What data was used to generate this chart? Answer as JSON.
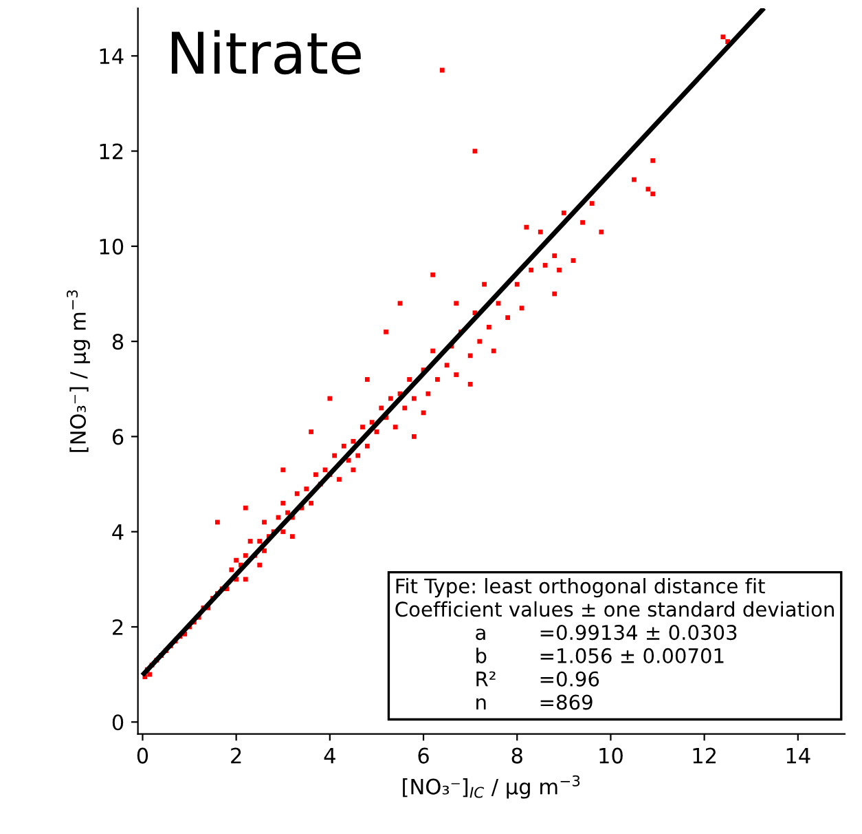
{
  "chart_data": {
    "type": "scatter",
    "title": "Nitrate",
    "xlabel": "[NO₃⁻]$_{IC}$ / µg m$^{−3}$",
    "ylabel": "[NO₃⁻] / µg m$^{−3}$",
    "annotations": [
      "Fit Type: least orthogonal distance fit",
      "Coefficient values ± one standard deviation",
      "a",
      "=0.99134 ± 0.0303",
      "b",
      "=1.056 ± 0.00701",
      "R²",
      "=0.96",
      "n",
      "=869"
    ],
    "xlim": [
      -0.1,
      15
    ],
    "ylim": [
      -0.25,
      15
    ],
    "xticks": [
      0,
      2,
      4,
      6,
      8,
      10,
      12,
      14
    ],
    "yticks": [
      0,
      2,
      4,
      6,
      8,
      10,
      12,
      14
    ],
    "grid": false,
    "legend": false,
    "marker": "square",
    "series": [
      {
        "color": "#ff0000",
        "x": [
          0.05,
          0.1,
          0.15,
          0.2,
          0.3,
          0.4,
          0.5,
          0.6,
          0.7,
          0.8,
          0.9,
          1.0,
          1.1,
          1.2,
          1.3,
          1.4,
          1.5,
          1.6,
          1.7,
          1.8,
          1.9,
          2.0,
          2.0,
          2.1,
          2.2,
          2.2,
          2.3,
          2.4,
          2.5,
          2.6,
          2.6,
          2.7,
          2.8,
          2.9,
          3.0,
          3.0,
          3.1,
          3.2,
          3.3,
          3.4,
          3.5,
          3.6,
          3.7,
          3.8,
          3.9,
          4.0,
          4.1,
          4.2,
          4.3,
          4.4,
          4.5,
          4.6,
          4.7,
          4.8,
          4.9,
          5.0,
          5.1,
          5.2,
          5.3,
          5.4,
          5.5,
          5.6,
          5.7,
          5.8,
          6.0,
          6.1,
          6.2,
          6.3,
          6.5,
          6.6,
          6.7,
          6.8,
          7.0,
          7.1,
          7.2,
          7.3,
          7.4,
          7.5,
          7.6,
          7.8,
          8.0,
          8.1,
          8.3,
          8.5,
          8.6,
          8.8,
          9.0,
          9.2,
          9.4,
          9.6,
          9.8,
          10.5,
          10.8,
          10.9,
          10.9,
          12.4,
          12.5,
          6.4,
          7.1,
          1.6,
          2.2,
          3.0,
          3.6,
          4.8,
          5.2,
          5.5,
          6.2,
          4.0,
          6.7,
          8.2,
          8.8,
          8.9,
          5.8,
          7.0,
          3.2,
          2.5,
          4.5,
          6.0
        ],
        "values": [
          0.95,
          1.1,
          1.0,
          1.2,
          1.3,
          1.4,
          1.5,
          1.6,
          1.7,
          1.8,
          1.85,
          2.0,
          2.1,
          2.2,
          2.4,
          2.4,
          2.6,
          2.7,
          2.8,
          2.8,
          3.2,
          3.0,
          3.4,
          3.3,
          3.5,
          3.0,
          3.8,
          3.5,
          3.8,
          3.6,
          4.2,
          3.9,
          4.0,
          4.3,
          4.0,
          4.6,
          4.4,
          4.3,
          4.8,
          4.5,
          4.9,
          4.6,
          5.2,
          5.0,
          5.3,
          5.2,
          5.6,
          5.1,
          5.8,
          5.5,
          5.9,
          5.6,
          6.2,
          5.8,
          6.3,
          6.1,
          6.6,
          6.4,
          6.8,
          6.2,
          6.9,
          6.6,
          7.2,
          6.8,
          7.4,
          6.9,
          7.8,
          7.2,
          7.5,
          7.9,
          7.3,
          8.2,
          7.7,
          8.6,
          8.0,
          9.2,
          8.3,
          7.8,
          8.8,
          8.5,
          9.2,
          8.7,
          9.5,
          10.3,
          9.6,
          9.8,
          10.7,
          9.7,
          10.5,
          10.9,
          10.3,
          11.4,
          11.2,
          11.8,
          11.1,
          14.4,
          14.3,
          13.7,
          12.0,
          4.2,
          4.5,
          5.3,
          6.1,
          7.2,
          8.2,
          8.8,
          9.4,
          6.8,
          8.8,
          10.4,
          9.0,
          9.5,
          6.0,
          7.1,
          3.9,
          3.3,
          5.3,
          6.5
        ]
      },
      {
        "type": "line",
        "color": "#000000",
        "marker": "none",
        "line_style": "solid",
        "x": [
          0.03,
          13.24
        ],
        "values": [
          1.02,
          14.97
        ]
      }
    ]
  }
}
